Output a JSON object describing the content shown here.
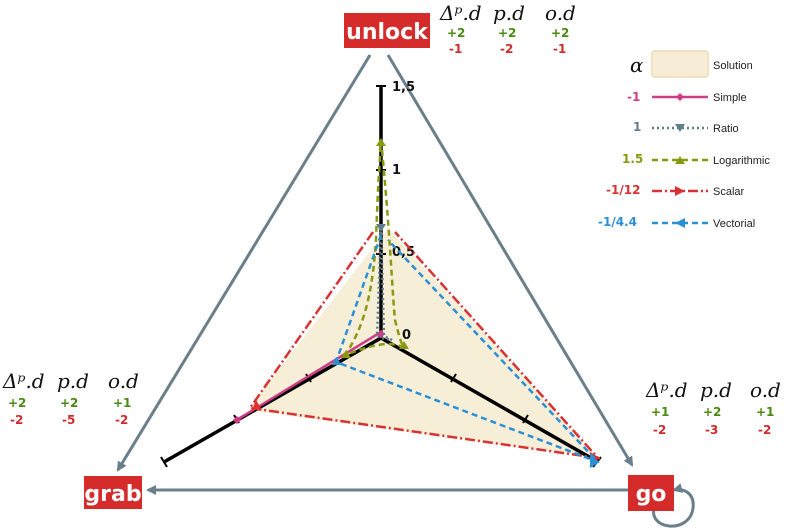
{
  "states": {
    "unlock": {
      "label": "unlock",
      "color": "#d62b2b"
    },
    "grab": {
      "label": "grab",
      "color": "#d62b2b"
    },
    "go": {
      "label": "go",
      "color": "#d62b2b"
    }
  },
  "tables": {
    "unlock": {
      "headers": [
        "Δᵖ.d",
        "p.d",
        "o.d"
      ],
      "pos": [
        "+2",
        "+2",
        "+2"
      ],
      "neg": [
        "-1",
        "-2",
        "-1"
      ]
    },
    "grab": {
      "headers": [
        "Δᵖ.d",
        "p.d",
        "o.d"
      ],
      "pos": [
        "+2",
        "+2",
        "+1"
      ],
      "neg": [
        "-2",
        "-5",
        "-2"
      ]
    },
    "go": {
      "headers": [
        "Δᵖ.d",
        "p.d",
        "o.d"
      ],
      "pos": [
        "+1",
        "+2",
        "+1"
      ],
      "neg": [
        "-2",
        "-3",
        "-2"
      ]
    }
  },
  "axis_ticks": [
    "0",
    "0,5",
    "1",
    "1,5"
  ],
  "legend": {
    "alpha_header": "α",
    "items": [
      {
        "alpha": "",
        "label": "Solution",
        "color": "#f5e9cf",
        "style": "fill"
      },
      {
        "alpha": "-1",
        "label": "Simple",
        "color": "#cc3d85",
        "style": "solid-diamond"
      },
      {
        "alpha": "1",
        "label": "Ratio",
        "color": "#607d8b",
        "style": "dotted-triangle"
      },
      {
        "alpha": "1.5",
        "label": "Logarithmic",
        "color": "#8a9a10",
        "style": "dashed-triangle"
      },
      {
        "alpha": "-1/12",
        "label": "Scalar",
        "color": "#d93232",
        "style": "dashdot-arrow"
      },
      {
        "alpha": "-1/4.4",
        "label": "Vectorial",
        "color": "#2b8fd6",
        "style": "dashed-arrow"
      }
    ]
  },
  "colors": {
    "arrow": "#6b7f8a",
    "axis": "#000000",
    "solution_fill": "#f7edd6"
  }
}
